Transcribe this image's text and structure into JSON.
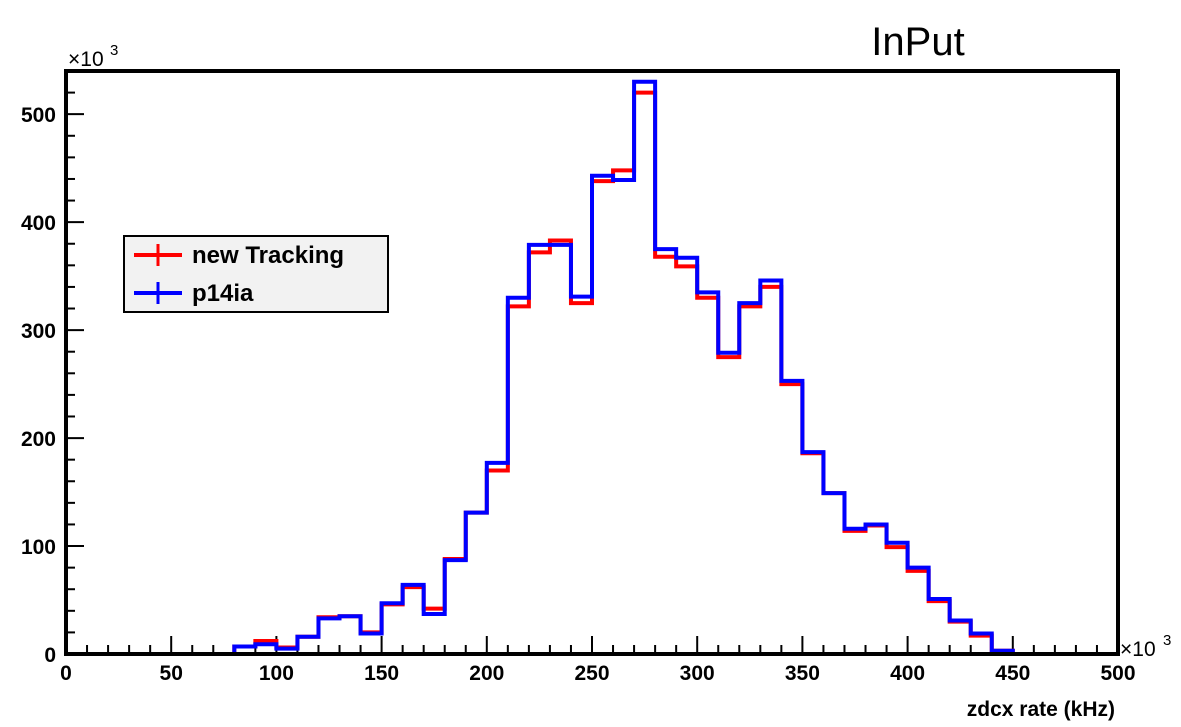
{
  "header": "InPut",
  "chart_data": {
    "type": "line",
    "step": true,
    "title": "",
    "xlabel": "zdcx rate (kHz)",
    "ylabel": "",
    "x_multiplier": "×10",
    "x_multiplier_exp": "3",
    "y_multiplier": "×10",
    "y_multiplier_exp": "3",
    "xlim": [
      0,
      500
    ],
    "ylim": [
      0,
      540
    ],
    "x_ticks": [
      0,
      50,
      100,
      150,
      200,
      250,
      300,
      350,
      400,
      450,
      500
    ],
    "y_ticks": [
      0,
      100,
      200,
      300,
      400,
      500
    ],
    "bin_edges": [
      0,
      10,
      20,
      30,
      40,
      50,
      60,
      70,
      80,
      90,
      100,
      110,
      120,
      130,
      140,
      150,
      160,
      170,
      180,
      190,
      200,
      210,
      220,
      230,
      240,
      250,
      260,
      270,
      280,
      290,
      300,
      310,
      320,
      330,
      340,
      350,
      360,
      370,
      380,
      390,
      400,
      410,
      420,
      430,
      440,
      450,
      460,
      470,
      480,
      490,
      500
    ],
    "series": [
      {
        "name": "new Tracking",
        "color": "#ff0000",
        "values": [
          0,
          0,
          0,
          0,
          0,
          0,
          0,
          0,
          7,
          12,
          6,
          16,
          34,
          35,
          20,
          46,
          62,
          42,
          88,
          131,
          170,
          322,
          372,
          383,
          325,
          438,
          448,
          520,
          368,
          359,
          330,
          275,
          322,
          340,
          250,
          186,
          149,
          114,
          119,
          99,
          77,
          49,
          30,
          17,
          3,
          0,
          0,
          0,
          0,
          0
        ]
      },
      {
        "name": "p14ia",
        "color": "#0000ff",
        "values": [
          0,
          0,
          0,
          0,
          0,
          0,
          0,
          0,
          7,
          9,
          5,
          16,
          33,
          35,
          19,
          47,
          64,
          37,
          87,
          131,
          177,
          330,
          379,
          379,
          331,
          443,
          439,
          530,
          375,
          367,
          335,
          279,
          325,
          346,
          253,
          187,
          149,
          116,
          120,
          103,
          80,
          51,
          31,
          19,
          3,
          0,
          0,
          0,
          0,
          0
        ]
      }
    ],
    "legend_position": "upper-left"
  }
}
